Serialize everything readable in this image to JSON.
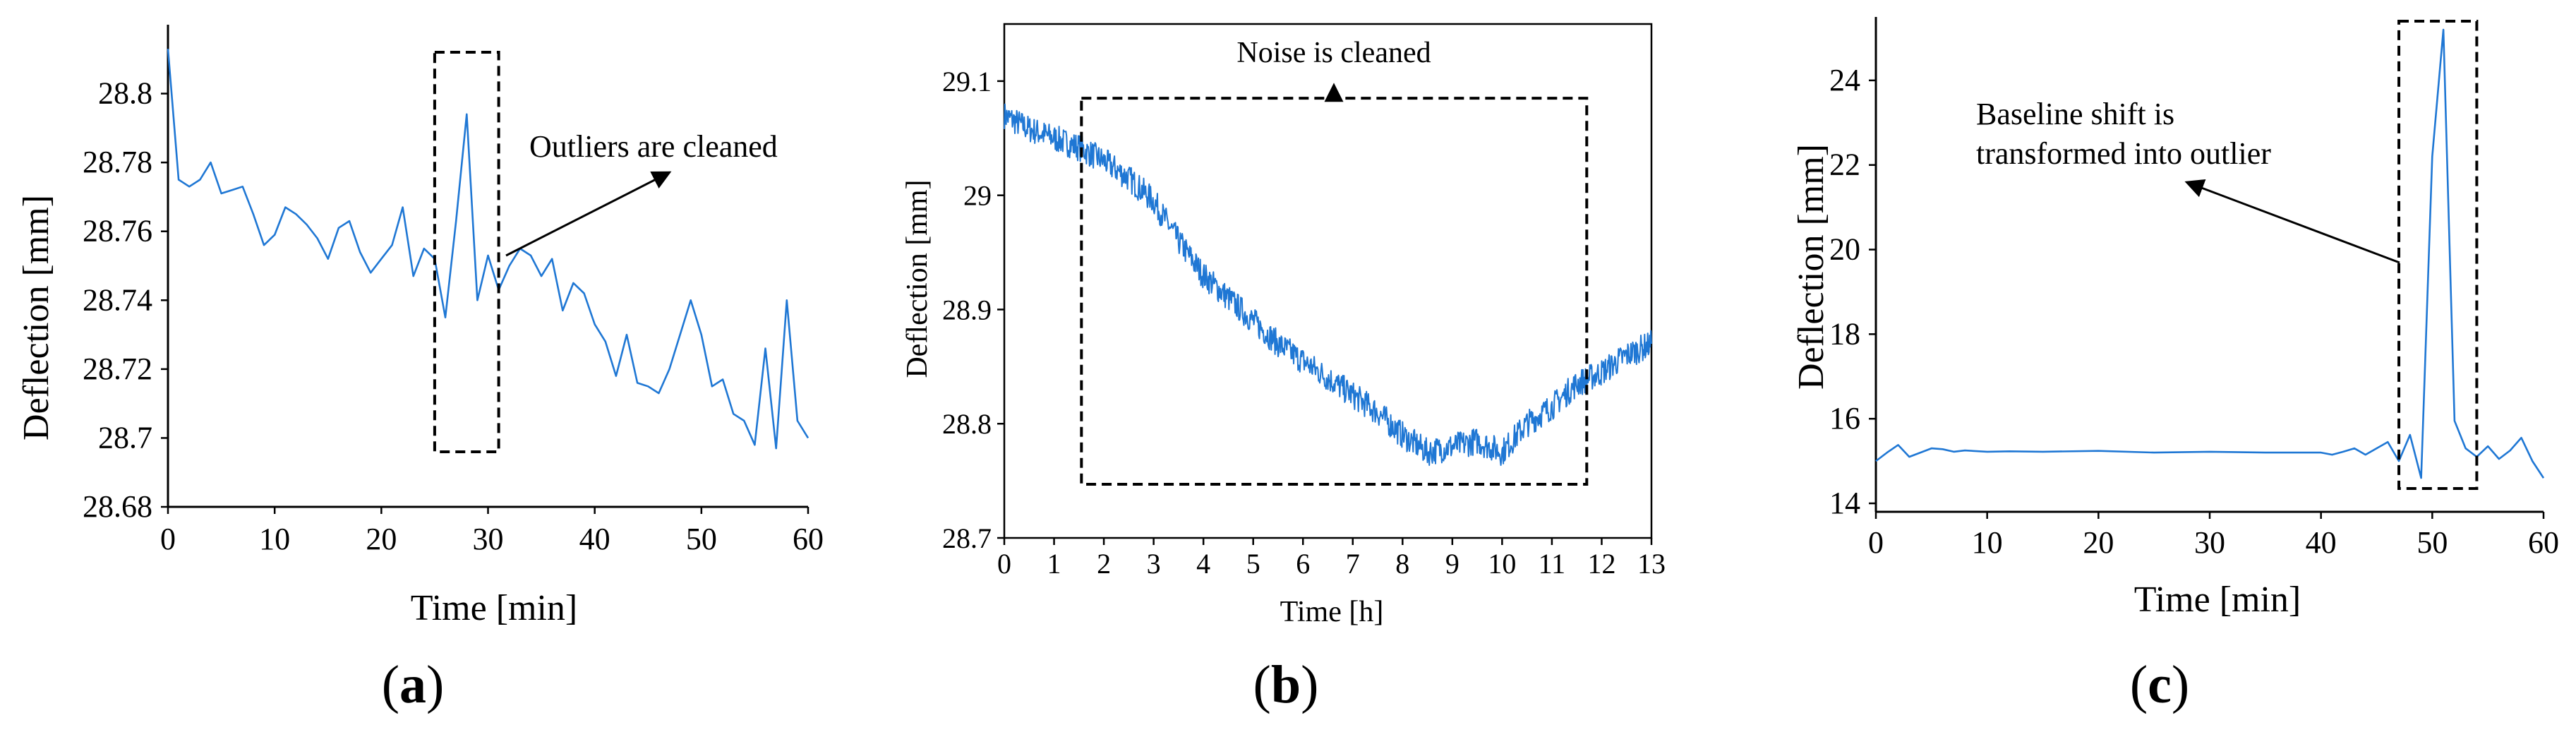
{
  "colors": {
    "series": "#1f77d4",
    "axis": "#000000",
    "background": "#ffffff"
  },
  "panels": [
    {
      "id": "a",
      "label_open": "(",
      "label_letter": "a",
      "label_close": ")",
      "annotation": "Outliers are cleaned"
    },
    {
      "id": "b",
      "label_open": "(",
      "label_letter": "b",
      "label_close": ")",
      "annotation": "Noise is cleaned"
    },
    {
      "id": "c",
      "label_open": "(",
      "label_letter": "c",
      "label_close": ")",
      "annotation_line1": "Baseline shift is",
      "annotation_line2": "transformed into outlier"
    }
  ],
  "chart_data": [
    {
      "type": "line",
      "title": "",
      "xlabel": "Time [min]",
      "ylabel": "Deflection [mm]",
      "xlim": [
        0,
        60
      ],
      "ylim": [
        28.68,
        28.82
      ],
      "xticks": [
        0,
        10,
        20,
        30,
        40,
        50,
        60
      ],
      "xtick_labels": [
        "0",
        "10",
        "20",
        "30",
        "40",
        "50",
        "60"
      ],
      "yticks": [
        28.68,
        28.7,
        28.72,
        28.74,
        28.76,
        28.78,
        28.8
      ],
      "ytick_labels": [
        "28.68",
        "28.7",
        "28.72",
        "28.74",
        "28.76",
        "28.78",
        "28.8"
      ],
      "highlight_box": {
        "x": [
          25,
          31
        ],
        "y": [
          28.696,
          28.812
        ]
      },
      "series": [
        {
          "name": "Deflection",
          "x": [
            0,
            1,
            2,
            3,
            4,
            5,
            6,
            7,
            8,
            9,
            10,
            11,
            12,
            13,
            14,
            15,
            16,
            17,
            18,
            19,
            20,
            21,
            22,
            23,
            24,
            25,
            26,
            27,
            28,
            29,
            30,
            31,
            32,
            33,
            34,
            35,
            36,
            37,
            38,
            39,
            40,
            41,
            42,
            43,
            44,
            45,
            46,
            47,
            48,
            49,
            50,
            51,
            52,
            53,
            54,
            55,
            56,
            57,
            58,
            59,
            60
          ],
          "values": [
            28.813,
            28.775,
            28.773,
            28.775,
            28.78,
            28.771,
            28.772,
            28.773,
            28.765,
            28.756,
            28.759,
            28.767,
            28.765,
            28.762,
            28.758,
            28.752,
            28.761,
            28.763,
            28.754,
            28.748,
            28.752,
            28.756,
            28.767,
            28.747,
            28.755,
            28.752,
            28.735,
            28.763,
            28.794,
            28.74,
            28.753,
            28.743,
            28.75,
            28.755,
            28.753,
            28.747,
            28.752,
            28.737,
            28.745,
            28.742,
            28.733,
            28.728,
            28.718,
            28.73,
            28.716,
            28.715,
            28.713,
            28.72,
            28.73,
            28.74,
            28.73,
            28.715,
            28.717,
            28.707,
            28.705,
            28.698,
            28.726,
            28.697,
            28.74,
            28.705,
            28.7
          ]
        }
      ]
    },
    {
      "type": "line",
      "title": "",
      "xlabel": "Time [h]",
      "ylabel": "Deflection [mm]",
      "xlim": [
        0,
        13
      ],
      "ylim": [
        28.7,
        29.15
      ],
      "xticks": [
        0,
        1,
        2,
        3,
        4,
        5,
        6,
        7,
        8,
        9,
        10,
        11,
        12,
        13
      ],
      "xtick_labels": [
        "0",
        "1",
        "2",
        "3",
        "4",
        "5",
        "6",
        "7",
        "8",
        "9",
        "10",
        "11",
        "12",
        "13"
      ],
      "yticks": [
        28.7,
        28.8,
        28.9,
        29,
        29.1
      ],
      "ytick_labels": [
        "28.7",
        "28.8",
        "28.9",
        "29",
        "29.1"
      ],
      "highlight_box": {
        "x": [
          1.55,
          11.7
        ],
        "y": [
          28.747,
          29.085
        ]
      },
      "series": [
        {
          "name": "Deflection",
          "x": [
            0,
            0.5,
            1,
            1.5,
            2,
            2.5,
            3,
            3.5,
            4,
            4.5,
            5,
            5.5,
            6,
            6.5,
            7,
            7.5,
            8,
            8.5,
            9,
            9.5,
            10,
            10.5,
            11,
            11.5,
            12,
            12.5,
            13
          ],
          "values": [
            29.07,
            29.058,
            29.05,
            29.042,
            29.03,
            29.015,
            28.995,
            28.96,
            28.93,
            28.91,
            28.89,
            28.87,
            28.855,
            28.84,
            28.825,
            28.81,
            28.79,
            28.775,
            28.78,
            28.785,
            28.775,
            28.8,
            28.815,
            28.835,
            28.845,
            28.86,
            28.87
          ],
          "noise_amplitude": 0.012
        }
      ]
    },
    {
      "type": "line",
      "title": "",
      "xlabel": "Time [min]",
      "ylabel": "Deflection [mm]",
      "xlim": [
        0,
        60
      ],
      "ylim": [
        13.8,
        25.5
      ],
      "xticks": [
        0,
        10,
        20,
        30,
        40,
        50,
        60
      ],
      "xtick_labels": [
        "0",
        "10",
        "20",
        "30",
        "40",
        "50",
        "60"
      ],
      "yticks": [
        14,
        16,
        18,
        20,
        22,
        24
      ],
      "ytick_labels": [
        "14",
        "16",
        "18",
        "20",
        "22",
        "24"
      ],
      "highlight_box": {
        "x": [
          47,
          54
        ],
        "y": [
          14.35,
          25.4
        ]
      },
      "series": [
        {
          "name": "Deflection",
          "x": [
            0,
            1,
            2,
            3,
            4,
            5,
            6,
            7,
            8,
            10,
            12,
            15,
            20,
            25,
            30,
            35,
            40,
            41,
            42,
            43,
            44,
            45,
            46,
            47,
            48,
            49,
            50,
            51,
            52,
            53,
            54,
            55,
            56,
            57,
            58,
            59,
            60
          ],
          "values": [
            15.0,
            15.2,
            15.38,
            15.1,
            15.2,
            15.3,
            15.28,
            15.22,
            15.25,
            15.22,
            15.23,
            15.22,
            15.24,
            15.2,
            15.22,
            15.2,
            15.2,
            15.15,
            15.22,
            15.3,
            15.15,
            15.3,
            15.45,
            15.0,
            15.62,
            14.6,
            22.2,
            25.2,
            15.95,
            15.3,
            15.1,
            15.35,
            15.05,
            15.25,
            15.55,
            15.0,
            14.6
          ]
        }
      ]
    }
  ]
}
